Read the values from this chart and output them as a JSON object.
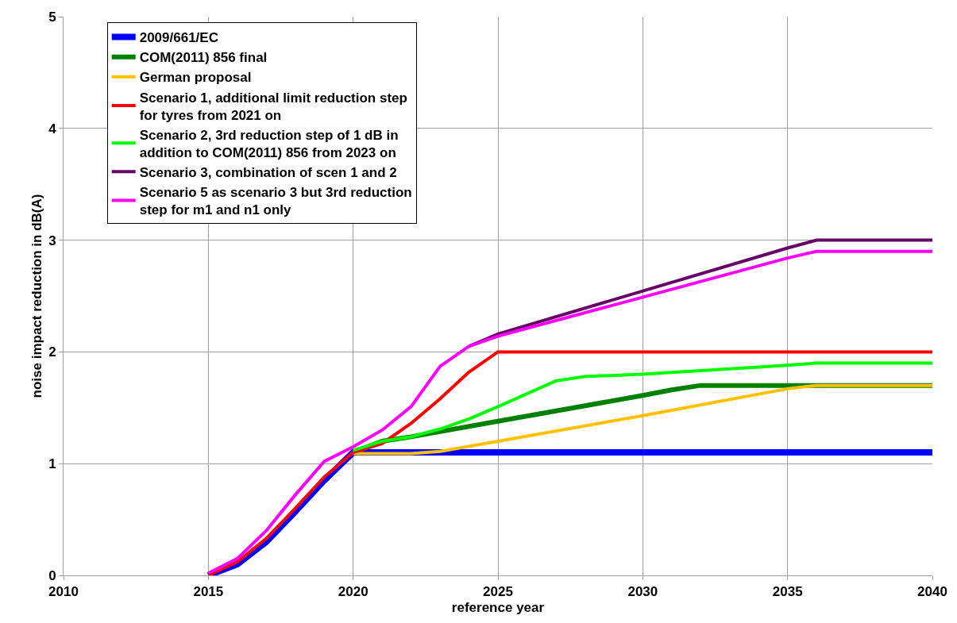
{
  "chart_data": {
    "type": "line",
    "xlabel": "reference year",
    "ylabel": "noise impact reduction in dB(A)",
    "xlim": [
      2010,
      2040
    ],
    "xticks": [
      2010,
      2015,
      2020,
      2025,
      2030,
      2035,
      2040
    ],
    "ylim": [
      0,
      5
    ],
    "yticks": [
      0,
      1,
      2,
      3,
      4,
      5
    ],
    "grid": true,
    "legend": "top left",
    "marker": "none",
    "line_style": "solid",
    "series": [
      {
        "name": "2009/661/EC",
        "color": "#0000ff",
        "x": [
          2015,
          2016,
          2017,
          2018,
          2019,
          2020,
          2040
        ],
        "values": [
          0,
          0.1,
          0.3,
          0.57,
          0.85,
          1.1,
          1.1
        ]
      },
      {
        "name": "COM(2011) 856 final",
        "color": "#008000",
        "x": [
          2020,
          2021,
          2022,
          2025,
          2030,
          2031,
          2032,
          2040
        ],
        "values": [
          1.1,
          1.2,
          1.24,
          1.38,
          1.61,
          1.66,
          1.7,
          1.7
        ]
      },
      {
        "name": "German proposal",
        "color": "#ffc000",
        "x": [
          2020,
          2022,
          2023,
          2025,
          2030,
          2035,
          2036,
          2040
        ],
        "values": [
          1.09,
          1.09,
          1.11,
          1.2,
          1.43,
          1.67,
          1.7,
          1.7
        ]
      },
      {
        "name": "Scenario 1, additional limit reduction step for tyres from 2021 on",
        "color": "#ff0000",
        "x": [
          2015,
          2016,
          2017,
          2018,
          2019,
          2020,
          2021,
          2022,
          2023,
          2024,
          2025,
          2040
        ],
        "values": [
          0,
          0.12,
          0.33,
          0.6,
          0.88,
          1.1,
          1.18,
          1.36,
          1.58,
          1.82,
          2.0,
          2.0
        ]
      },
      {
        "name": "Scenario 2, 3rd reduction step of 1 dB in addition to COM(2011) 856 from 2023 on",
        "color": "#00ff00",
        "x": [
          2020,
          2021,
          2022,
          2023,
          2024,
          2025,
          2027,
          2028,
          2030,
          2035,
          2036,
          2040
        ],
        "values": [
          1.12,
          1.2,
          1.24,
          1.31,
          1.4,
          1.51,
          1.74,
          1.78,
          1.8,
          1.88,
          1.9,
          1.9
        ]
      },
      {
        "name": "Scenario 3, combination of scen 1 and 2",
        "color": "#660066",
        "x": [
          2024,
          2025,
          2035,
          2036,
          2040
        ],
        "values": [
          2.05,
          2.16,
          2.93,
          3.0,
          3.0
        ]
      },
      {
        "name": "Scenario 5 as scenario 3 but 3rd reduction step for m1 and n1 only",
        "color": "#ff00ff",
        "x": [
          2015,
          2016,
          2017,
          2018,
          2019,
          2020,
          2021,
          2022,
          2023,
          2024,
          2025,
          2035,
          2036,
          2040
        ],
        "values": [
          0.02,
          0.15,
          0.4,
          0.72,
          1.02,
          1.15,
          1.3,
          1.51,
          1.87,
          2.05,
          2.14,
          2.84,
          2.9,
          2.9
        ]
      }
    ]
  }
}
